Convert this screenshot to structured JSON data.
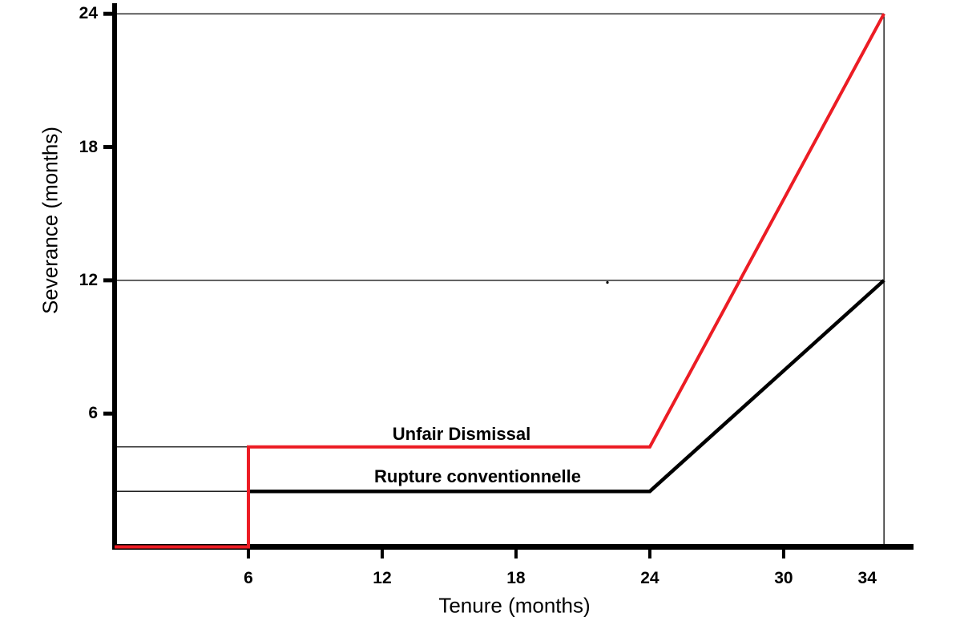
{
  "chart_data": {
    "type": "line",
    "title": "",
    "xlabel": "Tenure (months)",
    "ylabel": "Severance (months)",
    "x_ticks": [
      6,
      12,
      18,
      24,
      30,
      34
    ],
    "x_ticks_without_mark": [
      34
    ],
    "y_ticks": [
      6,
      12,
      18,
      24
    ],
    "xlim": [
      0,
      35.8
    ],
    "ylim": [
      0,
      24.3
    ],
    "legend_position": "inline-annotations",
    "grid": "guide lines only",
    "series": [
      {
        "name": "Unfair Dismissal",
        "color": "#EC1C24",
        "points": [
          [
            0,
            0
          ],
          [
            6,
            0
          ],
          [
            6,
            4.5
          ],
          [
            24,
            4.5
          ],
          [
            34.5,
            24
          ]
        ]
      },
      {
        "name": "Rupture conventionnelle",
        "color": "#000000",
        "points": [
          [
            6,
            2.5
          ],
          [
            24,
            2.5
          ],
          [
            34.5,
            12
          ]
        ]
      }
    ],
    "guide_lines": {
      "horizontal_full": [
        24,
        12
      ],
      "horizontal_to_x6": [
        4.5,
        2.5
      ],
      "vertical_at_x": [
        34.5
      ]
    }
  }
}
